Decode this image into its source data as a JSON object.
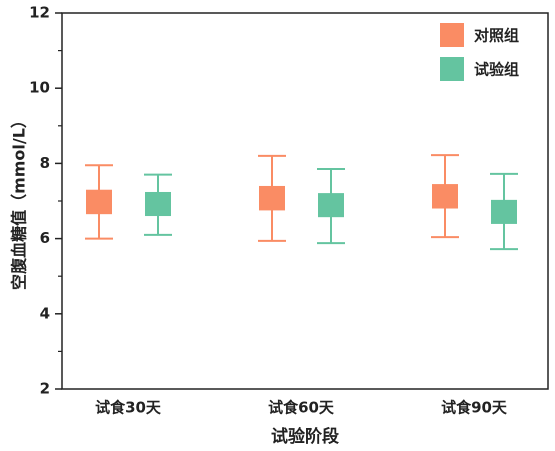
{
  "chart_data": {
    "type": "box",
    "xlabel": "试验阶段",
    "ylabel": "空腹血糖值（mmol/L）",
    "categories": [
      "试食30天",
      "试食60天",
      "试食90天"
    ],
    "ylim": [
      2,
      12
    ],
    "yticks": [
      2,
      4,
      6,
      8,
      10,
      12
    ],
    "legend": "upper right",
    "series": [
      {
        "name": "对照组",
        "color": "#fa8c64",
        "min": [
          6.0,
          5.94,
          6.04
        ],
        "q1": [
          6.65,
          6.75,
          6.8
        ],
        "q3": [
          7.3,
          7.4,
          7.45
        ],
        "max": [
          7.95,
          8.2,
          8.22
        ]
      },
      {
        "name": "试验组",
        "color": "#64c4a0",
        "min": [
          6.1,
          5.88,
          5.72
        ],
        "q1": [
          6.6,
          6.57,
          6.39
        ],
        "q3": [
          7.24,
          7.21,
          7.03
        ],
        "max": [
          7.7,
          7.85,
          7.72
        ]
      }
    ]
  }
}
